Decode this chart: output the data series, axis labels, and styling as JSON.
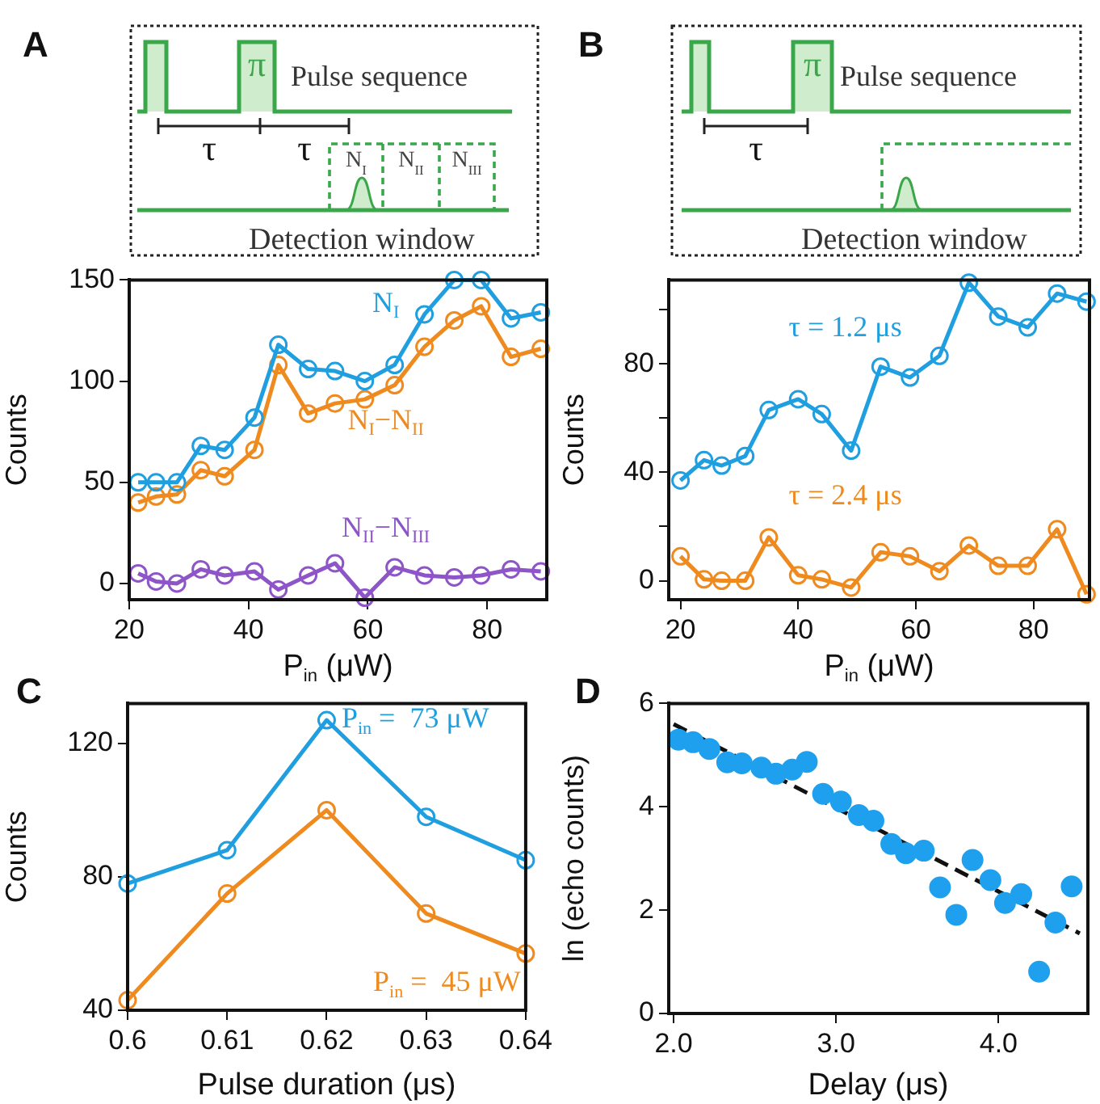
{
  "chart_data": [
    {
      "type": "line",
      "title": "A",
      "xlabel": "P$_{in}$ (μW)",
      "ylabel": "Counts",
      "marker": "circle",
      "annotations": [
        "π",
        "Pulse sequence",
        "τ",
        "τ",
        "N$_{I}$",
        "N$_{II}$",
        "N$_{III}$",
        "Detection window"
      ],
      "x": [
        21.5,
        24.5,
        28,
        32,
        36,
        41,
        45,
        50,
        54.5,
        59.5,
        64.5,
        69.5,
        74.5,
        79,
        84,
        89
      ],
      "series": [
        {
          "name": "N$_{I}$",
          "color": "#1f9ee0",
          "values": [
            50,
            50,
            50,
            68,
            66,
            82,
            118,
            106,
            105,
            100,
            108,
            133,
            150,
            150,
            131,
            134
          ]
        },
        {
          "name": "N$_{I}$−N$_{II}$",
          "color": "#ef8a1e",
          "values": [
            40,
            43,
            44,
            56,
            53,
            66,
            108,
            84,
            89,
            91,
            98,
            117,
            130,
            137,
            112,
            116
          ]
        },
        {
          "name": "N$_{II}$−N$_{III}$",
          "color": "#8e55c8",
          "values": [
            5,
            1,
            0,
            7,
            4,
            6,
            -3,
            4,
            10,
            -7,
            8,
            4,
            3,
            4,
            7,
            6
          ]
        }
      ],
      "xlim": [
        20,
        90
      ],
      "xticks": [
        20,
        40,
        60,
        80
      ],
      "ylim": [
        -8,
        150
      ],
      "yticks": [
        0,
        50,
        100,
        150
      ]
    },
    {
      "type": "line",
      "title": "B",
      "xlabel": "P$_{in}$ (μW)",
      "ylabel": "Counts",
      "marker": "circle",
      "annotations": [
        "π",
        "Pulse sequence",
        "τ",
        "Detection window"
      ],
      "x": [
        20,
        24,
        27,
        31,
        35,
        40,
        44,
        49,
        54,
        59,
        64,
        69,
        74,
        79,
        84,
        89
      ],
      "series": [
        {
          "name": "τ = 1.2 μs",
          "color": "#1f9ee0",
          "values": [
            37,
            44.5,
            42.5,
            46,
            63,
            67,
            61.5,
            48,
            79,
            75,
            83,
            110,
            97.5,
            93.5,
            106,
            103
          ]
        },
        {
          "name": "τ = 2.4 μs",
          "color": "#ef8a1e",
          "values": [
            9,
            0.5,
            0,
            0,
            16,
            2,
            0.5,
            -2.5,
            10.5,
            9,
            3.5,
            13,
            5.5,
            5.5,
            19,
            -5
          ]
        }
      ],
      "xlim": [
        18,
        89.5
      ],
      "xticks": [
        20,
        40,
        60,
        80
      ],
      "ylim": [
        -7,
        111
      ],
      "yticks": [
        0,
        {
          "value": 20,
          "label": null
        },
        40,
        {
          "value": 60,
          "label": null
        },
        80,
        {
          "value": 100,
          "label": null
        }
      ]
    },
    {
      "type": "line",
      "title": "C",
      "xlabel": "Pulse duration (μs)",
      "ylabel": "Counts",
      "marker": "circle",
      "x": [
        0.6,
        0.61,
        0.62,
        0.63,
        0.64
      ],
      "series": [
        {
          "name": "P$_{in}$ =  73 μW",
          "color": "#1f9ee0",
          "values": [
            78,
            88,
            127,
            98,
            85
          ]
        },
        {
          "name": "P$_{in}$ =  45 μW",
          "color": "#ef8a1e",
          "values": [
            43,
            75,
            100,
            69,
            57
          ]
        }
      ],
      "xlim": [
        0.6,
        0.64
      ],
      "xticks": [
        0.6,
        0.61,
        0.62,
        0.63,
        0.64
      ],
      "ylim": [
        40,
        132
      ],
      "yticks": [
        40,
        80,
        120
      ]
    },
    {
      "type": "scatter",
      "title": "D",
      "xlabel": "Delay (μs)",
      "ylabel": "ln (echo counts)",
      "series": [
        {
          "type": "scatter",
          "marker": "circle",
          "color": "#1fa0ee",
          "x": [
            2.03,
            2.12,
            2.22,
            2.33,
            2.42,
            2.54,
            2.63,
            2.73,
            2.82,
            2.92,
            3.03,
            3.14,
            3.23,
            3.34,
            3.43,
            3.54,
            3.64,
            3.74,
            3.84,
            3.95,
            4.04,
            4.14,
            4.25,
            4.35,
            4.45
          ],
          "values": [
            5.3,
            5.25,
            5.12,
            4.86,
            4.84,
            4.76,
            4.64,
            4.72,
            4.87,
            4.25,
            4.1,
            3.84,
            3.73,
            3.28,
            3.1,
            3.15,
            2.44,
            1.91,
            2.97,
            2.58,
            2.14,
            2.31,
            0.81,
            1.76,
            2.46
          ]
        },
        {
          "type": "line",
          "marker": "none",
          "line_style": "dashed",
          "color": "#111111",
          "x": [
            2.0,
            4.5
          ],
          "values": [
            5.6,
            1.55
          ]
        }
      ],
      "xlim": [
        1.97,
        4.55
      ],
      "xticks": [
        {
          "value": 2,
          "label": "2.0"
        },
        {
          "value": 3,
          "label": "3.0"
        },
        {
          "value": 4,
          "label": "4.0"
        }
      ],
      "ylim": [
        0,
        6
      ],
      "yticks": [
        0,
        2,
        4,
        6
      ]
    }
  ]
}
